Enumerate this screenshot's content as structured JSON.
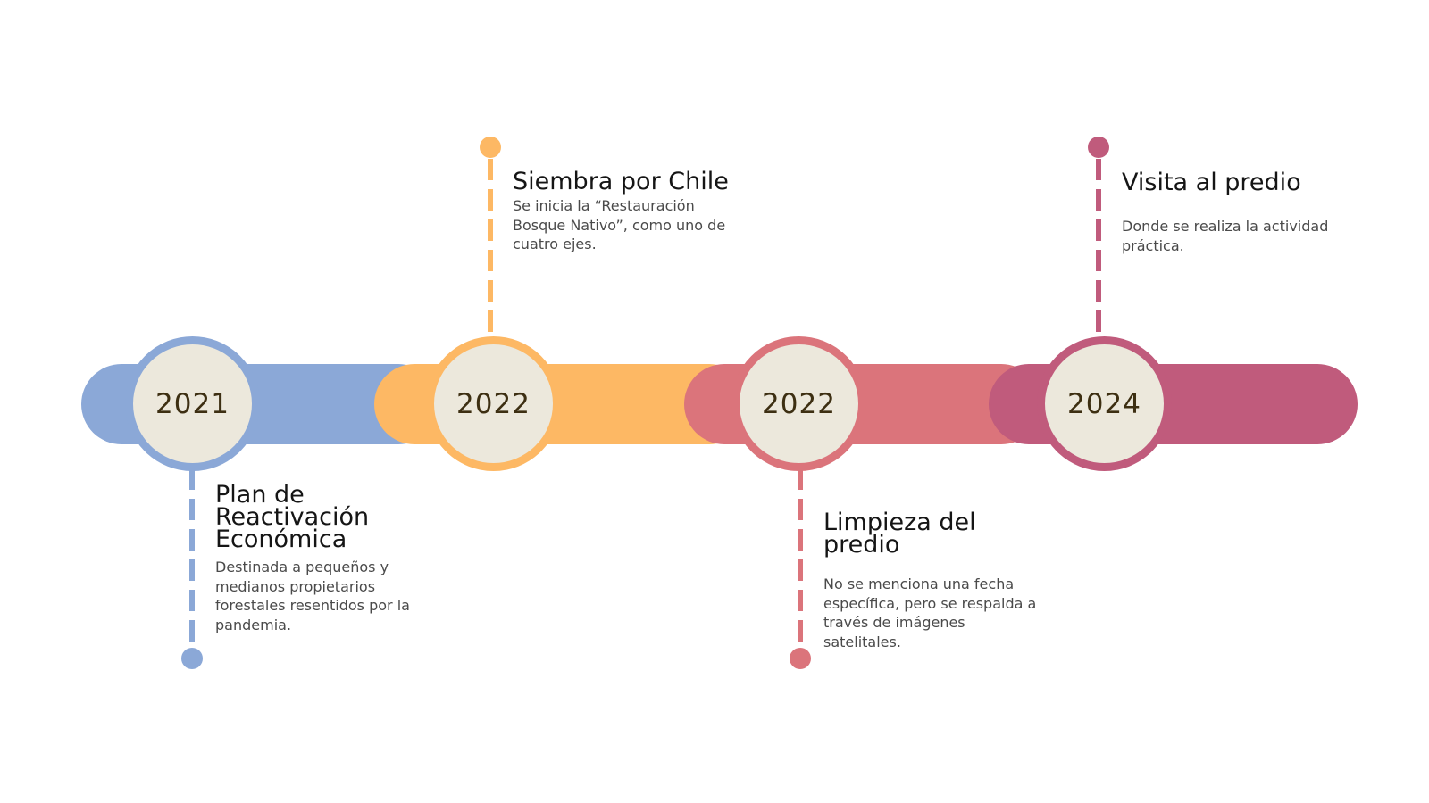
{
  "colors": {
    "blue": "#8ba8d7",
    "orange": "#fdb864",
    "coral": "#db747b",
    "plum": "#c05b7c",
    "node_fill": "#ece8dc",
    "year_text": "#3d2f12"
  },
  "events": [
    {
      "year": "2021",
      "title": "Plan de Reactivación Económica",
      "description": "Destinada a pequeños y medianos propietarios forestales resentidos por la pandemia.",
      "color": "blue",
      "side": "below"
    },
    {
      "year": "2022",
      "title": "Siembra por Chile",
      "description": "Se inicia la “Restauración Bosque Nativo”, como uno de cuatro ejes.",
      "color": "orange",
      "side": "above"
    },
    {
      "year": "2022",
      "title": "Limpieza del predio",
      "description": "No se menciona una fecha específica, pero se respalda a través de imágenes satelitales.",
      "color": "coral",
      "side": "below"
    },
    {
      "year": "2024",
      "title": "Visita al predio",
      "description": "Donde se realiza la actividad práctica.",
      "color": "plum",
      "side": "above"
    }
  ]
}
